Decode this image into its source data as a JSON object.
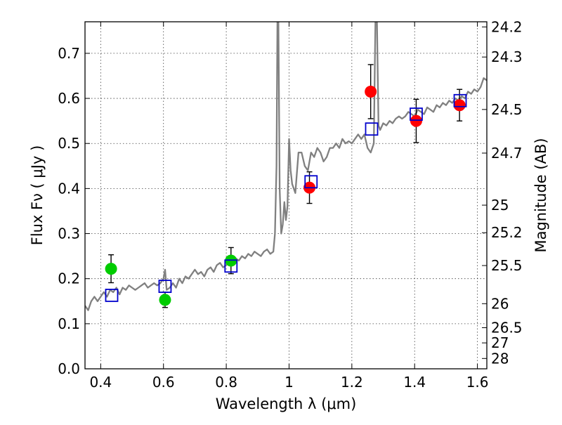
{
  "chart_data": {
    "type": "scatter",
    "title": "",
    "xlabel": "Wavelength  λ (μm)",
    "ylabel": "Flux  Fν  ( μJy )",
    "ylabel_right": "Magnitude (AB)",
    "xlim": [
      0.35,
      1.63
    ],
    "ylim": [
      0.0,
      0.77
    ],
    "grid": true,
    "x_ticks": [
      {
        "value": 0.4,
        "label": "0.4"
      },
      {
        "value": 0.6,
        "label": "0.6"
      },
      {
        "value": 0.8,
        "label": "0.8"
      },
      {
        "value": 1.0,
        "label": "1"
      },
      {
        "value": 1.2,
        "label": "1.2"
      },
      {
        "value": 1.4,
        "label": "1.4"
      },
      {
        "value": 1.6,
        "label": "1.6"
      }
    ],
    "y_ticks": [
      {
        "value": 0.0,
        "label": "0.0"
      },
      {
        "value": 0.1,
        "label": "0.1"
      },
      {
        "value": 0.2,
        "label": "0.2"
      },
      {
        "value": 0.3,
        "label": "0.3"
      },
      {
        "value": 0.4,
        "label": "0.4"
      },
      {
        "value": 0.5,
        "label": "0.5"
      },
      {
        "value": 0.6,
        "label": "0.6"
      },
      {
        "value": 0.7,
        "label": "0.7"
      }
    ],
    "right_ticks": [
      {
        "label": "24.2",
        "flux": 0.7586
      },
      {
        "label": "24.3",
        "flux": 0.6918
      },
      {
        "label": "24.5",
        "flux": 0.5754
      },
      {
        "label": "24.7",
        "flux": 0.4786
      },
      {
        "label": "25",
        "flux": 0.3631
      },
      {
        "label": "25.2",
        "flux": 0.302
      },
      {
        "label": "25.5",
        "flux": 0.2291
      },
      {
        "label": "26",
        "flux": 0.1445
      },
      {
        "label": "26.5",
        "flux": 0.0912
      },
      {
        "label": "27",
        "flux": 0.0575
      },
      {
        "label": "28",
        "flux": 0.0229
      }
    ],
    "series": [
      {
        "kind": "line",
        "color": "#808080",
        "x": [
          0.35,
          0.36,
          0.37,
          0.38,
          0.39,
          0.4,
          0.41,
          0.42,
          0.43,
          0.44,
          0.45,
          0.46,
          0.47,
          0.48,
          0.49,
          0.5,
          0.51,
          0.52,
          0.53,
          0.54,
          0.55,
          0.56,
          0.57,
          0.58,
          0.59,
          0.6,
          0.605,
          0.61,
          0.62,
          0.63,
          0.64,
          0.65,
          0.66,
          0.67,
          0.68,
          0.69,
          0.7,
          0.71,
          0.72,
          0.73,
          0.74,
          0.75,
          0.76,
          0.77,
          0.78,
          0.79,
          0.8,
          0.81,
          0.82,
          0.83,
          0.84,
          0.85,
          0.86,
          0.87,
          0.88,
          0.89,
          0.9,
          0.91,
          0.92,
          0.93,
          0.94,
          0.95,
          0.955,
          0.96,
          0.963,
          0.966,
          0.97,
          0.975,
          0.98,
          0.985,
          0.99,
          0.995,
          1.0,
          1.005,
          1.01,
          1.02,
          1.03,
          1.04,
          1.05,
          1.06,
          1.07,
          1.08,
          1.09,
          1.1,
          1.11,
          1.12,
          1.13,
          1.14,
          1.15,
          1.16,
          1.17,
          1.18,
          1.19,
          1.2,
          1.21,
          1.22,
          1.23,
          1.24,
          1.25,
          1.26,
          1.27,
          1.275,
          1.28,
          1.285,
          1.29,
          1.3,
          1.31,
          1.32,
          1.33,
          1.34,
          1.35,
          1.36,
          1.37,
          1.38,
          1.39,
          1.4,
          1.41,
          1.42,
          1.43,
          1.44,
          1.45,
          1.46,
          1.47,
          1.48,
          1.49,
          1.5,
          1.51,
          1.52,
          1.53,
          1.54,
          1.55,
          1.56,
          1.57,
          1.58,
          1.59,
          1.6,
          1.61,
          1.62,
          1.63
        ],
        "y": [
          0.14,
          0.13,
          0.15,
          0.16,
          0.15,
          0.16,
          0.17,
          0.16,
          0.175,
          0.17,
          0.18,
          0.165,
          0.18,
          0.175,
          0.185,
          0.18,
          0.175,
          0.18,
          0.185,
          0.19,
          0.18,
          0.185,
          0.19,
          0.185,
          0.19,
          0.2,
          0.22,
          0.175,
          0.18,
          0.19,
          0.18,
          0.2,
          0.19,
          0.205,
          0.2,
          0.21,
          0.22,
          0.21,
          0.215,
          0.205,
          0.22,
          0.225,
          0.215,
          0.23,
          0.235,
          0.225,
          0.23,
          0.24,
          0.235,
          0.245,
          0.24,
          0.25,
          0.245,
          0.255,
          0.25,
          0.26,
          0.255,
          0.25,
          0.26,
          0.265,
          0.255,
          0.26,
          0.3,
          0.45,
          0.77,
          0.77,
          0.4,
          0.3,
          0.32,
          0.37,
          0.33,
          0.36,
          0.51,
          0.44,
          0.41,
          0.39,
          0.48,
          0.48,
          0.45,
          0.44,
          0.48,
          0.47,
          0.49,
          0.48,
          0.46,
          0.47,
          0.49,
          0.49,
          0.5,
          0.49,
          0.51,
          0.5,
          0.505,
          0.5,
          0.51,
          0.52,
          0.51,
          0.52,
          0.49,
          0.48,
          0.5,
          0.77,
          0.77,
          0.54,
          0.53,
          0.545,
          0.54,
          0.55,
          0.545,
          0.555,
          0.56,
          0.555,
          0.56,
          0.57,
          0.565,
          0.56,
          0.575,
          0.57,
          0.565,
          0.58,
          0.575,
          0.57,
          0.585,
          0.58,
          0.59,
          0.585,
          0.595,
          0.59,
          0.6,
          0.595,
          0.605,
          0.6,
          0.615,
          0.61,
          0.62,
          0.615,
          0.625,
          0.645,
          0.64
        ]
      },
      {
        "kind": "points",
        "marker": "circle",
        "color": "#00cc00",
        "x": [
          0.433,
          0.605,
          0.815
        ],
        "y": [
          0.222,
          0.153,
          0.24
        ],
        "yerr": [
          0.031,
          0.017,
          0.029
        ]
      },
      {
        "kind": "points",
        "marker": "circle",
        "color": "#ff0000",
        "x": [
          1.065,
          1.26,
          1.405,
          1.543
        ],
        "y": [
          0.402,
          0.615,
          0.55,
          0.585
        ],
        "yerr": [
          0.035,
          0.06,
          0.048,
          0.035
        ]
      },
      {
        "kind": "points",
        "marker": "square",
        "color": "#0000cc",
        "x": [
          0.435,
          0.605,
          0.815,
          1.07,
          1.263,
          1.405,
          1.545
        ],
        "y": [
          0.163,
          0.183,
          0.228,
          0.415,
          0.532,
          0.565,
          0.595
        ]
      }
    ]
  }
}
